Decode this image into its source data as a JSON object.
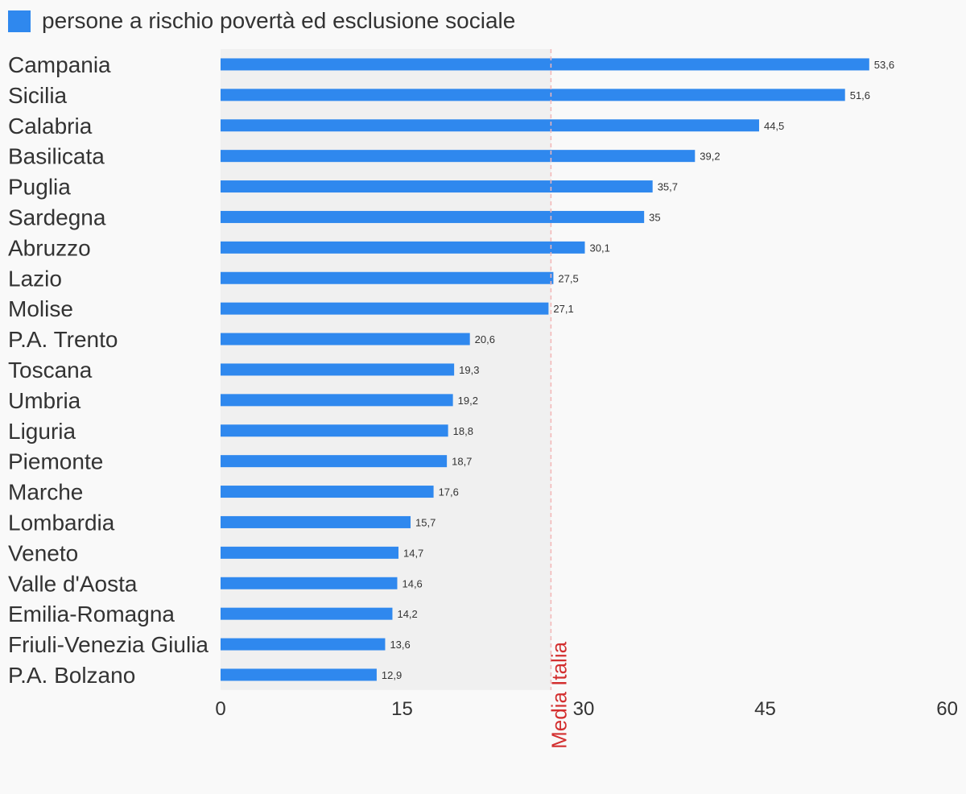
{
  "legend": {
    "label": "persone a rischio povertà ed esclusione sociale"
  },
  "colors": {
    "bar": "#2f88ee",
    "reference": "#d32f2f",
    "band": "#f0f0f0",
    "background": "#f9f9f9",
    "text": "#333333"
  },
  "chart_data": {
    "type": "bar",
    "orientation": "horizontal",
    "categories": [
      "Campania",
      "Sicilia",
      "Calabria",
      "Basilicata",
      "Puglia",
      "Sardegna",
      "Abruzzo",
      "Lazio",
      "Molise",
      "P.A. Trento",
      "Toscana",
      "Umbria",
      "Liguria",
      "Piemonte",
      "Marche",
      "Lombardia",
      "Veneto",
      "Valle d'Aosta",
      "Emilia-Romagna",
      "Friuli-Venezia Giulia",
      "P.A. Bolzano"
    ],
    "values": [
      53.6,
      51.6,
      44.5,
      39.2,
      35.7,
      35,
      30.1,
      27.5,
      27.1,
      20.6,
      19.3,
      19.2,
      18.8,
      18.7,
      17.6,
      15.7,
      14.7,
      14.6,
      14.2,
      13.6,
      12.9
    ],
    "value_labels": [
      "53,6",
      "51,6",
      "44,5",
      "39,2",
      "35,7",
      "35",
      "30,1",
      "27,5",
      "27,1",
      "20,6",
      "19,3",
      "19,2",
      "18,8",
      "18,7",
      "17,6",
      "15,7",
      "14,7",
      "14,6",
      "14,2",
      "13,6",
      "12,9"
    ],
    "series": [
      {
        "name": "persone a rischio povertà ed esclusione sociale"
      }
    ],
    "xlim": [
      0,
      60
    ],
    "xticks": [
      0,
      15,
      30,
      45,
      60
    ],
    "xtick_labels": [
      "0",
      "15",
      "30",
      "45",
      "60"
    ],
    "reference_line": {
      "label": "Media Italia",
      "value": 27.3
    },
    "grid": false,
    "legend_position": "top-left"
  }
}
